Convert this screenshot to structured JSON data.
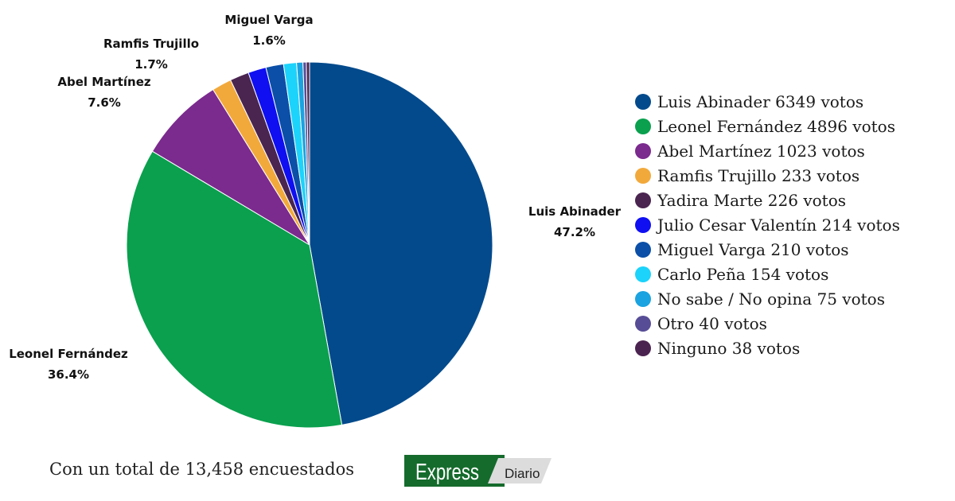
{
  "chart_data": {
    "type": "pie",
    "title": "",
    "slices": [
      {
        "name": "Luis Abinader",
        "value": 6349,
        "legend": "Luis Abinader 6349 votos",
        "pct_label": "47.2%",
        "color": "#034a8c"
      },
      {
        "name": "Leonel Fernández",
        "value": 4896,
        "legend": "Leonel Fernández 4896 votos",
        "pct_label": "36.4%",
        "color": "#0aa04e"
      },
      {
        "name": "Abel Martínez",
        "value": 1023,
        "legend": "Abel Martínez 1023 votos",
        "pct_label": "7.6%",
        "color": "#7b2a8e"
      },
      {
        "name": "Ramfis Trujillo",
        "value": 233,
        "legend": "Ramfis Trujillo 233 votos",
        "pct_label": "1.7%",
        "color": "#f2a93b"
      },
      {
        "name": "Yadira Marte",
        "value": 226,
        "legend": "Yadira Marte 226 votos",
        "pct_label": "",
        "color": "#4a2550"
      },
      {
        "name": "Julio Cesar Valentín",
        "value": 214,
        "legend": "Julio Cesar Valentín 214 votos",
        "pct_label": "",
        "color": "#0f0ff2"
      },
      {
        "name": "Miguel Varga",
        "value": 210,
        "legend": "Miguel Varga 210 votos",
        "pct_label": "1.6%",
        "color": "#0b4fa8"
      },
      {
        "name": "Carlo Peña",
        "value": 154,
        "legend": "Carlo Peña 154 votos",
        "pct_label": "",
        "color": "#1cd3fb"
      },
      {
        "name": "No sabe / No opina",
        "value": 75,
        "legend": "No sabe / No opina 75 votos",
        "pct_label": "",
        "color": "#1aa3e0"
      },
      {
        "name": "Otro",
        "value": 40,
        "legend": "Otro 40 votos",
        "pct_label": "",
        "color": "#574d96"
      },
      {
        "name": "Ninguno",
        "value": 38,
        "legend": "Ninguno 38 votos",
        "pct_label": "",
        "color": "#4b2350"
      }
    ],
    "legend_position": "right"
  },
  "footer": {
    "total_text": "Con un total de 13,458 encuestados"
  },
  "logo": {
    "main": "Express",
    "sub": "Diario",
    "colors": {
      "green": "#156b2c",
      "gray": "#dcdcdc"
    }
  }
}
